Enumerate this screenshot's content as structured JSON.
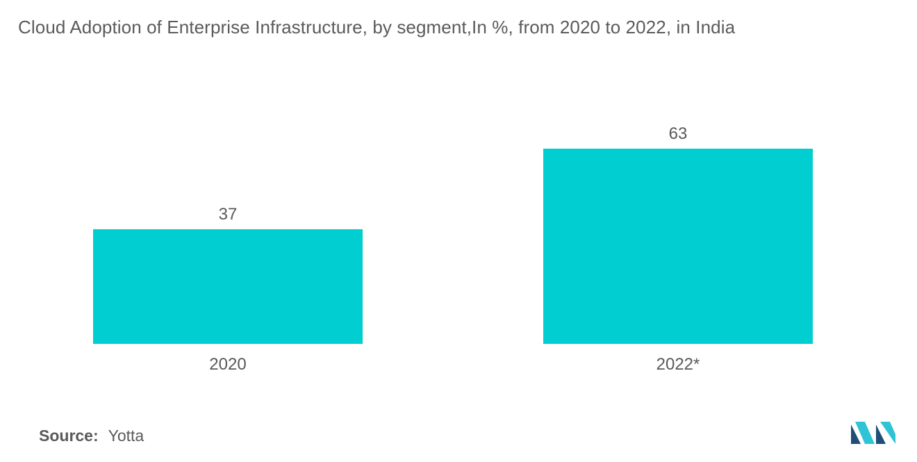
{
  "title": "Cloud Adoption of Enterprise Infrastructure,  by segment,In %, from 2020 to 2022, in India",
  "source": {
    "label": "Source:",
    "value": "Yotta"
  },
  "colors": {
    "bar": "#00CED1",
    "text": "#595959",
    "logo_dark": "#1f4e79",
    "logo_light": "#2ec4d6"
  },
  "logo_icon": "mordor-intelligence-logo",
  "chart_data": {
    "type": "bar",
    "title": "Cloud Adoption of Enterprise Infrastructure,  by segment,In %, from 2020 to 2022, in India",
    "categories": [
      "2020",
      "2022*"
    ],
    "values": [
      37,
      63
    ],
    "data_labels": [
      "37",
      "63"
    ],
    "xlabel": "",
    "ylabel": "",
    "grid": false,
    "legend": "none"
  }
}
